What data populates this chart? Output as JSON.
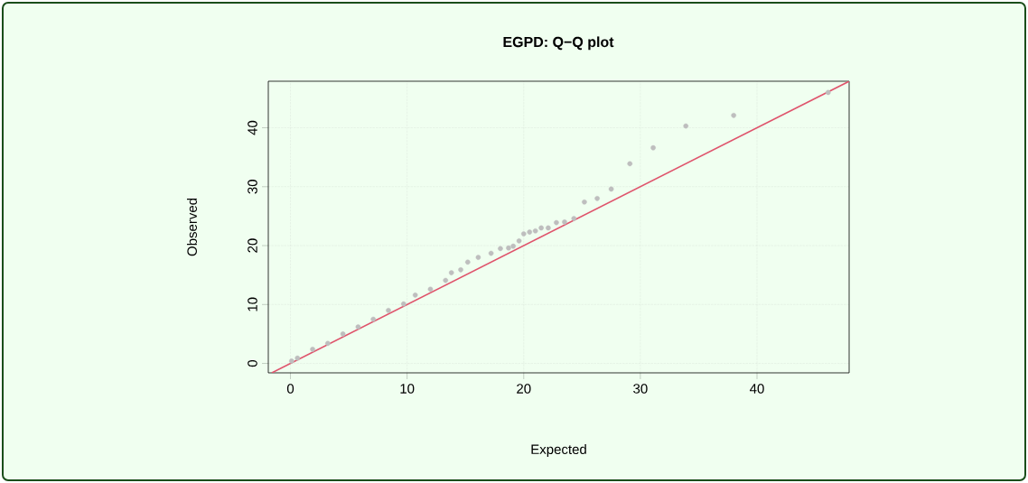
{
  "chart_data": {
    "type": "scatter",
    "title": "EGPD: Q−Q plot",
    "xlabel": "Expected",
    "ylabel": "Observed",
    "xlim": [
      -1.9,
      47.9
    ],
    "ylim": [
      -1.6,
      47.9
    ],
    "xticks": [
      0,
      10,
      20,
      30,
      40
    ],
    "yticks": [
      0,
      10,
      20,
      30,
      40
    ],
    "grid": true,
    "series": [
      {
        "color": "#bebebe",
        "x": [
          0.1,
          0.6,
          1.9,
          3.2,
          4.5,
          5.8,
          7.1,
          8.4,
          9.7,
          10.7,
          12.0,
          13.3,
          13.8,
          14.6,
          15.2,
          16.1,
          17.2,
          18.0,
          18.7,
          19.1,
          19.6,
          20.0,
          20.5,
          21.0,
          21.5,
          22.1,
          22.8,
          23.5,
          24.3,
          25.2,
          26.3,
          27.5,
          29.1,
          31.1,
          33.9,
          38.0,
          46.1
        ],
        "values": [
          0.4,
          0.9,
          2.4,
          3.4,
          5.0,
          6.2,
          7.5,
          9.0,
          10.1,
          11.6,
          12.6,
          14.1,
          15.4,
          15.9,
          17.2,
          18.0,
          18.7,
          19.5,
          19.6,
          19.9,
          20.8,
          22.0,
          22.3,
          22.5,
          23.0,
          23.0,
          23.9,
          24.0,
          24.6,
          27.4,
          28.0,
          29.6,
          33.9,
          36.6,
          40.3,
          42.1,
          46.0
        ]
      },
      {
        "type": "line",
        "marker": "none",
        "color": "#df536b",
        "x": [
          -1.6,
          47.9
        ],
        "values": [
          -1.6,
          47.9
        ]
      }
    ]
  }
}
